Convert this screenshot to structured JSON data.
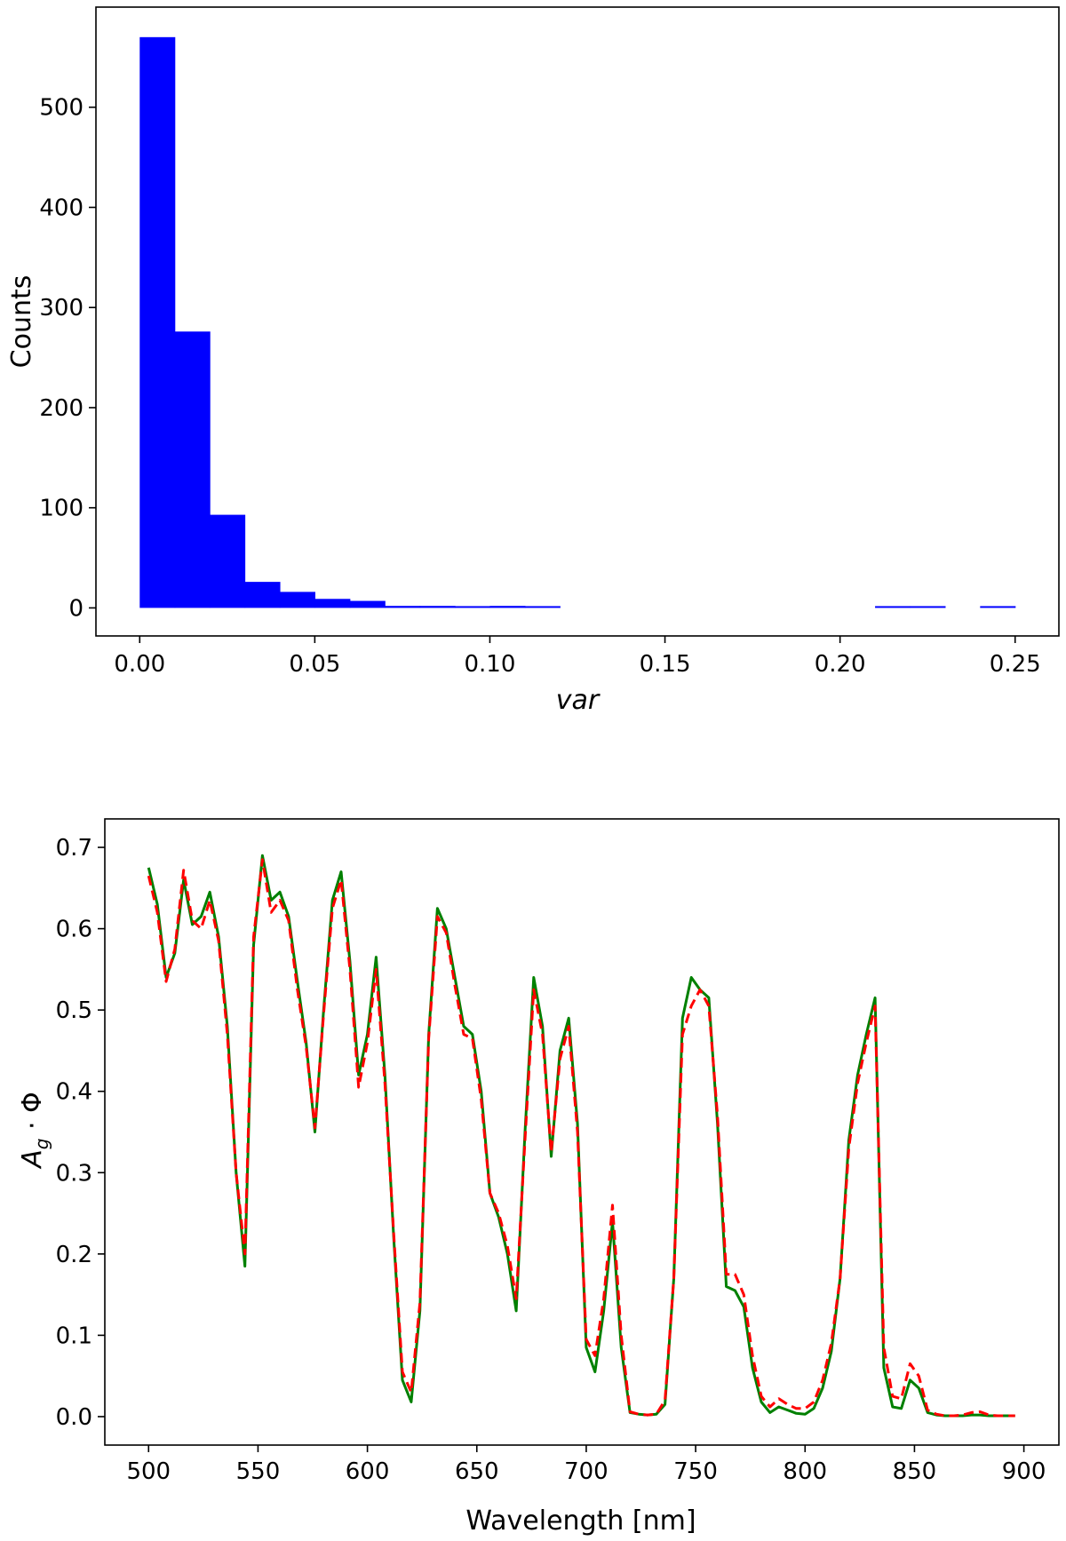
{
  "chart_data": [
    {
      "type": "bar",
      "xlabel": "var",
      "ylabel": "Counts",
      "xlim": [
        -0.0125,
        0.2625
      ],
      "ylim": [
        -28,
        600
      ],
      "xticks": [
        "0.00",
        "0.05",
        "0.10",
        "0.15",
        "0.20",
        "0.25"
      ],
      "yticks": [
        "0",
        "100",
        "200",
        "300",
        "400",
        "500"
      ],
      "bin_edges": [
        0.0,
        0.01,
        0.02,
        0.03,
        0.04,
        0.05,
        0.06,
        0.07,
        0.08,
        0.09,
        0.1,
        0.11,
        0.12,
        0.13,
        0.14,
        0.15,
        0.16,
        0.17,
        0.18,
        0.19,
        0.2,
        0.21,
        0.22,
        0.23,
        0.24,
        0.25
      ],
      "values": [
        570,
        276,
        93,
        26,
        16,
        9,
        7,
        2,
        2,
        1,
        2,
        1,
        0,
        0,
        0,
        0,
        0,
        0,
        0,
        0,
        0,
        1,
        1,
        0,
        1
      ],
      "color": "#0000ff",
      "grid": false
    },
    {
      "type": "line",
      "xlabel": "Wavelength [nm]",
      "ylabel": "A_g · Φ",
      "xlim": [
        480,
        916
      ],
      "ylim": [
        -0.035,
        0.735
      ],
      "xticks": [
        "500",
        "550",
        "600",
        "650",
        "700",
        "750",
        "800",
        "850",
        "900"
      ],
      "yticks": [
        "0.0",
        "0.1",
        "0.2",
        "0.3",
        "0.4",
        "0.5",
        "0.6",
        "0.7"
      ],
      "grid": false,
      "series": [
        {
          "color": "#008000",
          "style": "solid",
          "x": [
            500,
            504,
            508,
            512,
            516,
            520,
            524,
            528,
            532,
            536,
            540,
            544,
            548,
            552,
            556,
            560,
            564,
            568,
            572,
            576,
            580,
            584,
            588,
            592,
            596,
            600,
            604,
            608,
            612,
            616,
            620,
            624,
            628,
            632,
            636,
            640,
            644,
            648,
            652,
            656,
            660,
            664,
            668,
            672,
            676,
            680,
            684,
            688,
            692,
            696,
            700,
            704,
            708,
            712,
            716,
            720,
            724,
            728,
            732,
            736,
            740,
            744,
            748,
            752,
            756,
            760,
            764,
            768,
            772,
            776,
            780,
            784,
            788,
            792,
            796,
            800,
            804,
            808,
            812,
            816,
            820,
            824,
            828,
            832,
            836,
            840,
            844,
            848,
            852,
            856,
            860,
            864,
            868,
            872,
            876,
            880,
            884,
            888,
            892,
            896
          ],
          "y": [
            0.675,
            0.63,
            0.54,
            0.57,
            0.66,
            0.605,
            0.615,
            0.645,
            0.59,
            0.48,
            0.3,
            0.185,
            0.58,
            0.69,
            0.635,
            0.645,
            0.615,
            0.535,
            0.46,
            0.35,
            0.5,
            0.635,
            0.67,
            0.56,
            0.42,
            0.47,
            0.565,
            0.42,
            0.22,
            0.045,
            0.018,
            0.13,
            0.47,
            0.625,
            0.6,
            0.54,
            0.48,
            0.47,
            0.4,
            0.275,
            0.245,
            0.2,
            0.13,
            0.35,
            0.54,
            0.48,
            0.32,
            0.45,
            0.49,
            0.36,
            0.085,
            0.055,
            0.13,
            0.24,
            0.085,
            0.005,
            0.003,
            0.002,
            0.003,
            0.015,
            0.17,
            0.49,
            0.54,
            0.525,
            0.515,
            0.36,
            0.16,
            0.155,
            0.135,
            0.06,
            0.018,
            0.005,
            0.012,
            0.008,
            0.004,
            0.003,
            0.01,
            0.035,
            0.08,
            0.17,
            0.34,
            0.42,
            0.47,
            0.515,
            0.06,
            0.012,
            0.01,
            0.045,
            0.035,
            0.005,
            0.002,
            0.001,
            0.001,
            0.001,
            0.002,
            0.002,
            0.001,
            0.001,
            0.001,
            0.001
          ]
        },
        {
          "color": "#ff0000",
          "style": "dashed",
          "x": [
            500,
            504,
            508,
            512,
            516,
            520,
            524,
            528,
            532,
            536,
            540,
            544,
            548,
            552,
            556,
            560,
            564,
            568,
            572,
            576,
            580,
            584,
            588,
            592,
            596,
            600,
            604,
            608,
            612,
            616,
            620,
            624,
            628,
            632,
            636,
            640,
            644,
            648,
            652,
            656,
            660,
            664,
            668,
            672,
            676,
            680,
            684,
            688,
            692,
            696,
            700,
            704,
            708,
            712,
            716,
            720,
            724,
            728,
            732,
            736,
            740,
            744,
            748,
            752,
            756,
            760,
            764,
            768,
            772,
            776,
            780,
            784,
            788,
            792,
            796,
            800,
            804,
            808,
            812,
            816,
            820,
            824,
            828,
            832,
            836,
            840,
            844,
            848,
            852,
            856,
            860,
            864,
            868,
            872,
            876,
            880,
            884,
            888,
            892,
            896
          ],
          "y": [
            0.665,
            0.62,
            0.535,
            0.575,
            0.672,
            0.61,
            0.6,
            0.635,
            0.585,
            0.47,
            0.3,
            0.2,
            0.59,
            0.685,
            0.62,
            0.635,
            0.61,
            0.525,
            0.455,
            0.355,
            0.495,
            0.625,
            0.66,
            0.55,
            0.405,
            0.46,
            0.55,
            0.41,
            0.225,
            0.055,
            0.03,
            0.14,
            0.465,
            0.615,
            0.595,
            0.53,
            0.47,
            0.465,
            0.39,
            0.275,
            0.25,
            0.21,
            0.145,
            0.34,
            0.525,
            0.47,
            0.325,
            0.44,
            0.48,
            0.35,
            0.095,
            0.075,
            0.145,
            0.26,
            0.1,
            0.006,
            0.003,
            0.002,
            0.003,
            0.02,
            0.17,
            0.47,
            0.505,
            0.525,
            0.505,
            0.37,
            0.175,
            0.175,
            0.15,
            0.075,
            0.025,
            0.012,
            0.022,
            0.015,
            0.01,
            0.01,
            0.018,
            0.045,
            0.09,
            0.17,
            0.33,
            0.41,
            0.46,
            0.505,
            0.085,
            0.025,
            0.022,
            0.065,
            0.05,
            0.008,
            0.003,
            0.001,
            0.001,
            0.002,
            0.005,
            0.006,
            0.002,
            0.001,
            0.001,
            0.001
          ]
        }
      ]
    }
  ]
}
